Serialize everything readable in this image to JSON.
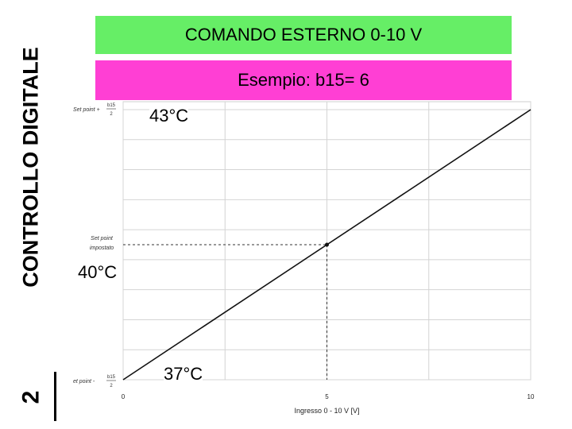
{
  "slide": {
    "side_title": "CONTROLLO DIGITALE",
    "slide_number": "2",
    "banner_title": "COMANDO ESTERNO 0-10 V",
    "banner_subtitle": "Esempio: b15= 6",
    "label_high": "43°C",
    "label_mid": "40°C",
    "label_low": "37°C",
    "green_color": "#66ee66",
    "pink_color": "#ff3fd4"
  },
  "chart_data": {
    "type": "line",
    "xlabel": "Ingresso 0 - 10 V [V]",
    "xlim": [
      0,
      10
    ],
    "x_ticks": [
      "0",
      "5",
      "10"
    ],
    "y_tick_labels": {
      "top": [
        "Set point +",
        "b15",
        "2"
      ],
      "middle": [
        "Set point",
        "impostato"
      ],
      "bottom": [
        "et point -",
        "b15",
        "2"
      ]
    },
    "series": [
      {
        "x": [
          0,
          10
        ],
        "y": [
          37,
          43
        ]
      }
    ],
    "marker": {
      "x": 5,
      "y": 40
    },
    "grid": true
  }
}
